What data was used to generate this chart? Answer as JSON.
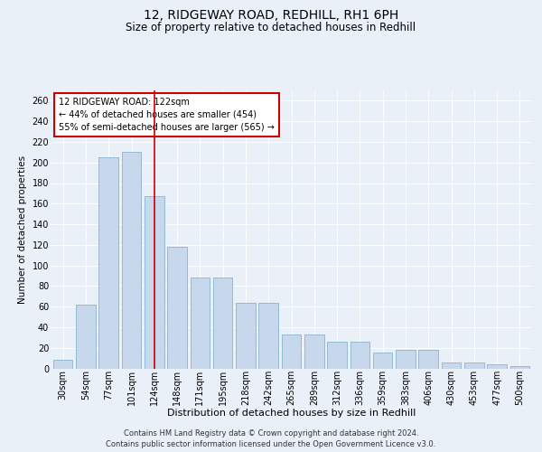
{
  "title1": "12, RIDGEWAY ROAD, REDHILL, RH1 6PH",
  "title2": "Size of property relative to detached houses in Redhill",
  "xlabel": "Distribution of detached houses by size in Redhill",
  "ylabel": "Number of detached properties",
  "categories": [
    "30sqm",
    "54sqm",
    "77sqm",
    "101sqm",
    "124sqm",
    "148sqm",
    "171sqm",
    "195sqm",
    "218sqm",
    "242sqm",
    "265sqm",
    "289sqm",
    "312sqm",
    "336sqm",
    "359sqm",
    "383sqm",
    "406sqm",
    "430sqm",
    "453sqm",
    "477sqm",
    "500sqm"
  ],
  "values": [
    8,
    62,
    205,
    210,
    167,
    118,
    88,
    88,
    64,
    64,
    33,
    33,
    26,
    26,
    15,
    18,
    18,
    6,
    6,
    4,
    2
  ],
  "bar_color": "#c8d8ec",
  "bar_edge_color": "#8ab4d0",
  "vline_index": 4,
  "vline_color": "#cc0000",
  "annotation_text": "12 RIDGEWAY ROAD: 122sqm\n← 44% of detached houses are smaller (454)\n55% of semi-detached houses are larger (565) →",
  "annotation_box_facecolor": "#ffffff",
  "annotation_box_edgecolor": "#cc0000",
  "ylim": [
    0,
    270
  ],
  "yticks": [
    0,
    20,
    40,
    60,
    80,
    100,
    120,
    140,
    160,
    180,
    200,
    220,
    240,
    260
  ],
  "bg_color": "#eaf0f8",
  "grid_color": "#ffffff",
  "footer": "Contains HM Land Registry data © Crown copyright and database right 2024.\nContains public sector information licensed under the Open Government Licence v3.0.",
  "title1_fontsize": 10,
  "title2_fontsize": 8.5,
  "xlabel_fontsize": 8,
  "ylabel_fontsize": 7.5,
  "tick_fontsize": 7,
  "annot_fontsize": 7,
  "footer_fontsize": 6
}
